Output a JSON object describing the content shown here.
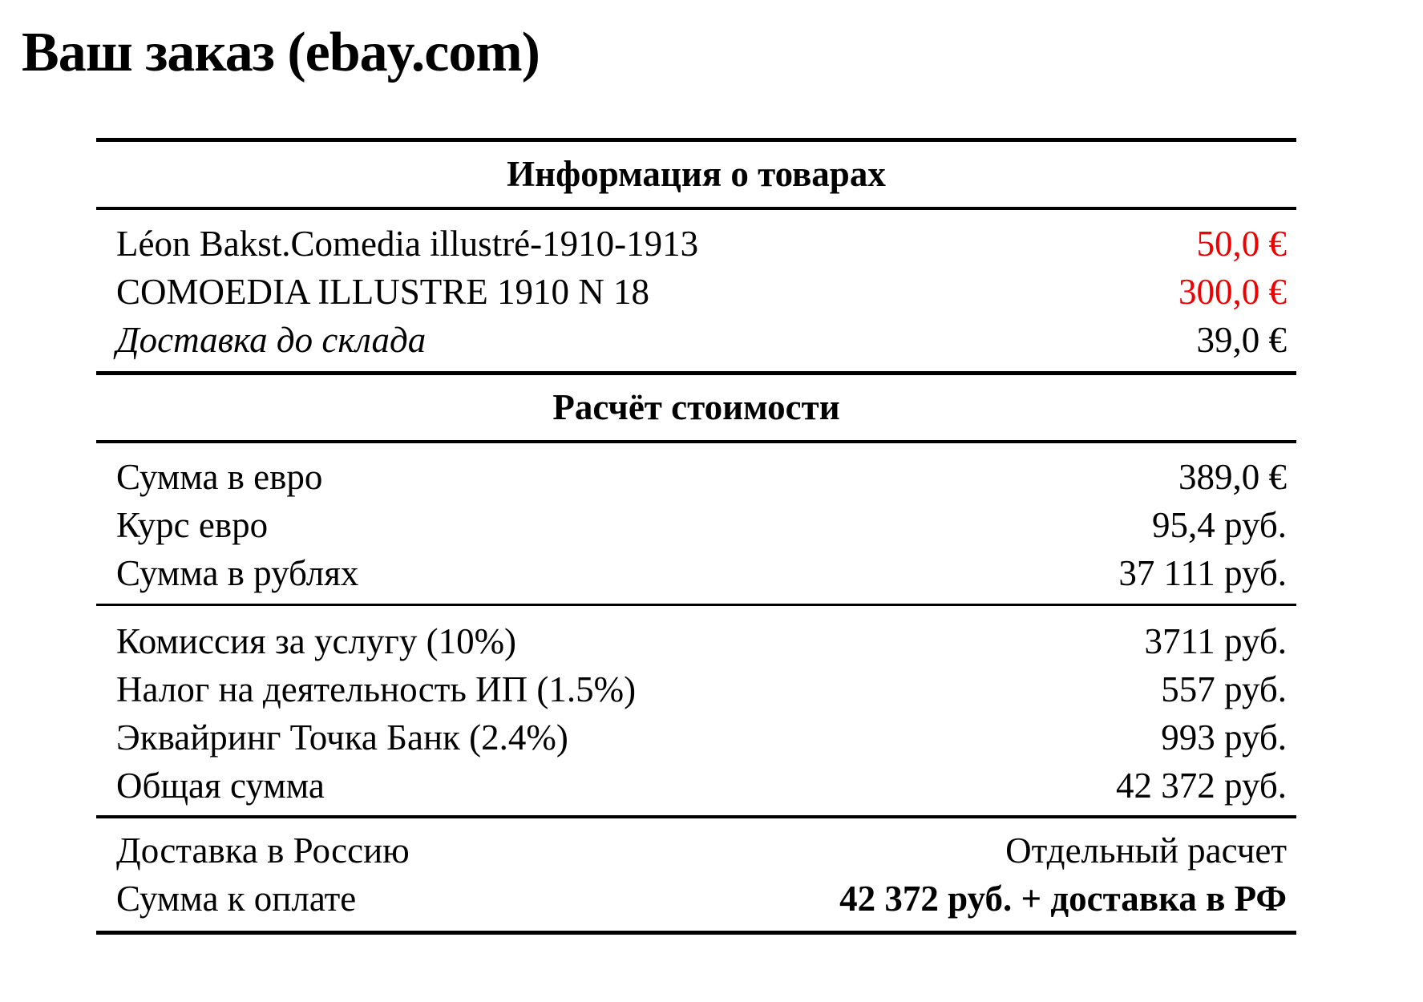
{
  "title": "Ваш заказ (ebay.com)",
  "colors": {
    "price_red": "#ee0000",
    "text": "#000000",
    "rule": "#000000"
  },
  "table": {
    "sections": [
      {
        "header": "Информация о товарах",
        "groups": [
          {
            "rows": [
              {
                "label": "Léon Bakst.Comedia illustré-1910-1913",
                "value": "50,0 €"
              },
              {
                "label": "COMOEDIA ILLUSTRE 1910 N 18",
                "value": "300,0 €"
              },
              {
                "label": "Доставка до склада",
                "value": "39,0 €"
              }
            ]
          }
        ]
      },
      {
        "header": "Расчёт стоимости",
        "groups": [
          {
            "rows": [
              {
                "label": "Сумма в евро",
                "value": "389,0 €"
              },
              {
                "label": "Курс евро",
                "value": "95,4 руб."
              },
              {
                "label": "Сумма в рублях",
                "value": "37 111 руб."
              }
            ]
          },
          {
            "rows": [
              {
                "label": "Комиссия за услугу (10%)",
                "value": "3711 руб."
              },
              {
                "label": "Налог на деятельность ИП (1.5%)",
                "value": "557 руб."
              },
              {
                "label": "Эквайринг Точка Банк (2.4%)",
                "value": "993 руб."
              },
              {
                "label": "Общая сумма",
                "value": "42 372 руб."
              }
            ]
          },
          {
            "rows": [
              {
                "label": "Доставка в Россию",
                "value": "Отдельный расчет"
              },
              {
                "label": "Сумма к оплате",
                "value": "42 372 руб. + доставка в РФ"
              }
            ]
          }
        ]
      }
    ]
  }
}
